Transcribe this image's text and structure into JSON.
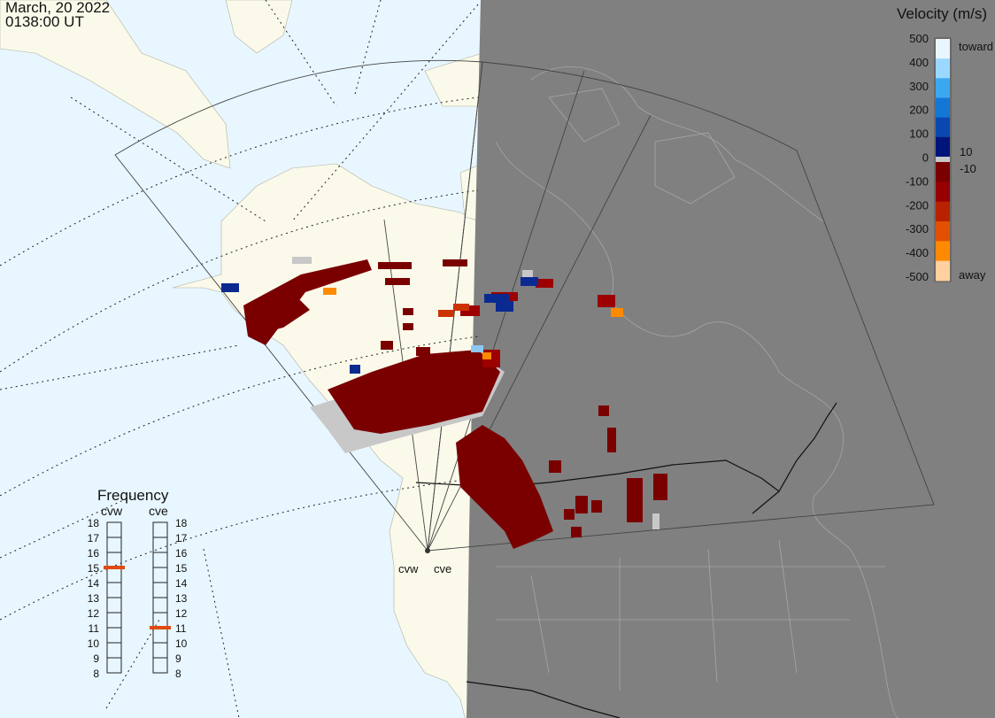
{
  "header": {
    "date": "March, 20 2022",
    "time": "0138:00 UT"
  },
  "legend": {
    "title": "Velocity (m/s)",
    "toward_label": "toward",
    "away_label": "away",
    "ticks": [
      "500",
      "400",
      "300",
      "200",
      "100",
      "0",
      "-100",
      "-200",
      "-300",
      "-400",
      "-500"
    ],
    "inner_labels": [
      "10",
      "-10"
    ],
    "colors": [
      "#eaf6ff",
      "#9bd8ff",
      "#3aa8f0",
      "#1477d6",
      "#0a48b0",
      "#00157a",
      "#7a0000",
      "#960000",
      "#b82200",
      "#e05000",
      "#ff8a00",
      "#ffd0a0"
    ],
    "ground_scatter_color": "#c8c8c8"
  },
  "frequency": {
    "title": "Frequency",
    "radars": [
      "cvw",
      "cve"
    ],
    "scale": [
      "18",
      "17",
      "16",
      "15",
      "14",
      "13",
      "12",
      "11",
      "10",
      "9",
      "8"
    ],
    "cvw_mhz": 15,
    "cve_mhz": 11,
    "marker_color": "#e04a10"
  },
  "map": {
    "sites": [
      "cvw",
      "cve"
    ],
    "night_shade": "#808080",
    "ocean": "#e8f6ff",
    "land": "#fbfaea"
  }
}
